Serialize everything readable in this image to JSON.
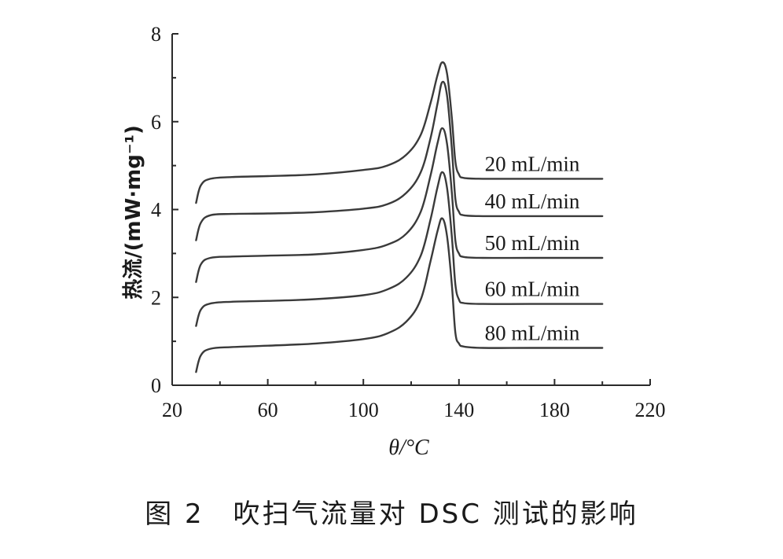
{
  "chart_data": {
    "type": "line",
    "xlabel": "θ/°C",
    "ylabel": "热流/(mW·mg⁻¹)",
    "xlim": [
      20,
      220
    ],
    "ylim": [
      0,
      8
    ],
    "xticks": [
      "20",
      "60",
      "100",
      "140",
      "180",
      "220"
    ],
    "yticks": [
      "0",
      "2",
      "4",
      "6",
      "8"
    ],
    "grid": false,
    "legend": "inline labels to the right of each curve",
    "series": [
      {
        "name": "20 mL/min",
        "x": [
          30,
          32,
          36,
          45,
          60,
          80,
          100,
          110,
          118,
          124,
          128,
          131,
          133,
          135,
          137,
          138.5,
          140,
          142,
          150,
          170,
          200
        ],
        "y": [
          4.15,
          4.55,
          4.7,
          4.74,
          4.76,
          4.8,
          4.9,
          5.0,
          5.25,
          5.7,
          6.4,
          7.05,
          7.35,
          7.1,
          6.1,
          5.1,
          4.8,
          4.72,
          4.7,
          4.7,
          4.7
        ]
      },
      {
        "name": "40 mL/min",
        "x": [
          30,
          32,
          36,
          45,
          60,
          80,
          100,
          110,
          118,
          124,
          128,
          131,
          133,
          135,
          137,
          138.5,
          140,
          142,
          150,
          170,
          200
        ],
        "y": [
          3.3,
          3.7,
          3.87,
          3.9,
          3.91,
          3.94,
          4.02,
          4.12,
          4.38,
          4.85,
          5.6,
          6.4,
          6.9,
          6.6,
          5.4,
          4.25,
          3.95,
          3.87,
          3.85,
          3.85,
          3.85
        ]
      },
      {
        "name": "50 mL/min",
        "x": [
          30,
          32,
          36,
          45,
          60,
          80,
          100,
          110,
          118,
          124,
          128,
          131,
          133,
          135,
          137,
          138.5,
          140,
          142,
          150,
          170,
          200
        ],
        "y": [
          2.35,
          2.75,
          2.9,
          2.93,
          2.95,
          2.98,
          3.08,
          3.2,
          3.45,
          3.95,
          4.75,
          5.5,
          5.85,
          5.5,
          4.4,
          3.3,
          3.0,
          2.92,
          2.9,
          2.9,
          2.9
        ]
      },
      {
        "name": "60 mL/min",
        "x": [
          30,
          32,
          36,
          45,
          60,
          80,
          100,
          110,
          118,
          124,
          128,
          131,
          133,
          135,
          137,
          138.5,
          140,
          142,
          150,
          170,
          200
        ],
        "y": [
          1.35,
          1.72,
          1.86,
          1.9,
          1.92,
          1.96,
          2.05,
          2.18,
          2.45,
          2.95,
          3.75,
          4.5,
          4.85,
          4.5,
          3.4,
          2.3,
          1.95,
          1.87,
          1.85,
          1.85,
          1.85
        ]
      },
      {
        "name": "80 mL/min",
        "x": [
          30,
          32,
          36,
          45,
          60,
          80,
          100,
          110,
          118,
          124,
          128,
          131,
          133,
          135,
          137,
          138.5,
          140,
          142,
          150,
          170,
          200
        ],
        "y": [
          0.3,
          0.68,
          0.83,
          0.87,
          0.9,
          0.95,
          1.05,
          1.18,
          1.45,
          1.95,
          2.8,
          3.5,
          3.8,
          3.4,
          2.3,
          1.2,
          0.95,
          0.88,
          0.85,
          0.85,
          0.85
        ]
      }
    ]
  },
  "caption": "图 2　吹扫气流量对 DSC 测试的影响"
}
